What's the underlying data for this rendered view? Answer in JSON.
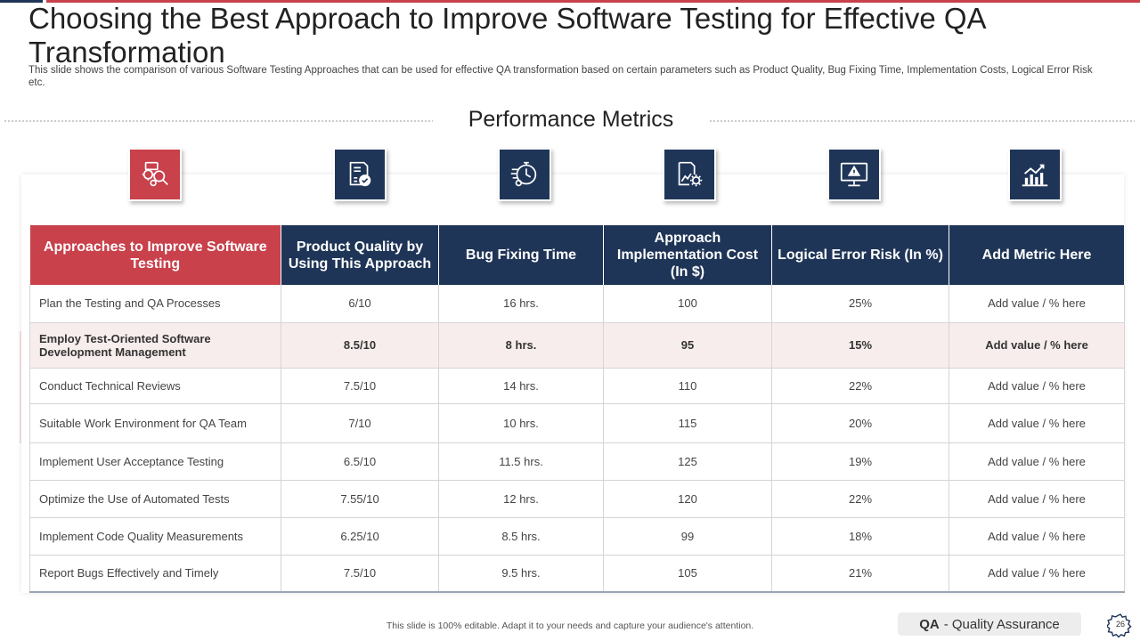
{
  "slide": {
    "title": "Choosing the Best Approach to Improve Software Testing for Effective QA Transformation",
    "subtitle": "This slide shows the comparison of various Software Testing Approaches that can be used for effective QA transformation based on certain parameters such as Product Quality, Bug Fixing Time, Implementation Costs, Logical Error Risk etc.",
    "section_heading": "Performance Metrics"
  },
  "icons": [
    {
      "name": "bug-search-icon",
      "color": "#c8414b"
    },
    {
      "name": "quality-badge-icon",
      "color": "#1f3557"
    },
    {
      "name": "stopwatch-gear-icon",
      "color": "#1f3557"
    },
    {
      "name": "cost-chart-gear-icon",
      "color": "#1f3557"
    },
    {
      "name": "monitor-warning-icon",
      "color": "#1f3557"
    },
    {
      "name": "bar-chart-icon",
      "color": "#1f3557"
    }
  ],
  "table": {
    "headers": [
      "Approaches to Improve Software Testing",
      "Product Quality by Using This Approach",
      "Bug Fixing Time",
      "Approach Implementation Cost (In $)",
      "Logical Error Risk (In %)",
      "Add Metric Here"
    ],
    "rows": [
      [
        "Plan the Testing and QA Processes",
        "6/10",
        "16 hrs.",
        "100",
        "25%",
        "Add value / % here"
      ],
      [
        "Employ Test-Oriented Software Development Management",
        "8.5/10",
        "8 hrs.",
        "95",
        "15%",
        "Add value / % here"
      ],
      [
        "Conduct Technical Reviews",
        "7.5/10",
        "14 hrs.",
        "110",
        "22%",
        "Add value / % here"
      ],
      [
        "Suitable Work Environment for QA Team",
        "7/10",
        "10 hrs.",
        "115",
        "20%",
        "Add value / % here"
      ],
      [
        "Implement User Acceptance Testing",
        "6.5/10",
        "11.5 hrs.",
        "125",
        "19%",
        "Add value / % here"
      ],
      [
        "Optimize the Use of Automated Tests",
        "7.55/10",
        "12 hrs.",
        "120",
        "22%",
        "Add value / % here"
      ],
      [
        "Implement Code Quality Measurements",
        "6.25/10",
        "8.5 hrs.",
        "99",
        "18%",
        "Add value / % here"
      ],
      [
        "Report Bugs Effectively and Timely",
        "7.5/10",
        "9.5 hrs.",
        "105",
        "21%",
        "Add value / % here"
      ]
    ],
    "highlighted_row": 1
  },
  "footer": {
    "note": "This slide is 100% editable. Adapt it to your needs and capture your audience's attention.",
    "qa_abbr": "QA",
    "qa_text": "- Quality Assurance",
    "page_number": "26"
  },
  "colors": {
    "accent_red": "#c8414b",
    "navy": "#1f3557",
    "highlight_row": "#f8eded"
  }
}
